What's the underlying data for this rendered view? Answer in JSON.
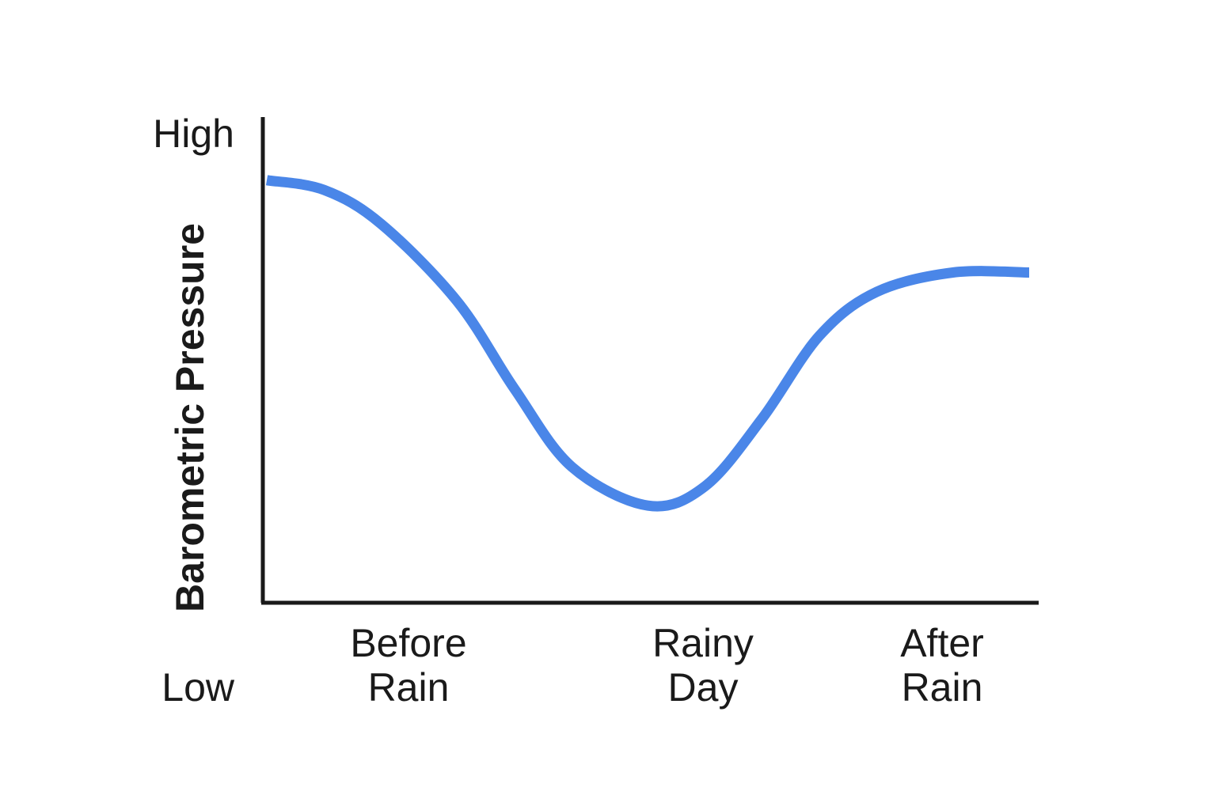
{
  "chart_data": {
    "type": "line",
    "title": "",
    "ylabel": "Barometric Pressure",
    "xlabel": "",
    "y_tick_labels": {
      "high": "High",
      "low": "Low"
    },
    "categories": [
      {
        "line1": "Before",
        "line2": "Rain"
      },
      {
        "line1": "Rainy",
        "line2": "Day"
      },
      {
        "line1": "After",
        "line2": "Rain"
      }
    ],
    "ylim": [
      0,
      100
    ],
    "series": [
      {
        "color": "#4a86e8",
        "x": [
          0,
          0.3,
          0.6,
          1.0,
          1.3,
          1.6,
          2.0,
          2.3,
          2.6,
          2.9,
          3.2,
          3.6,
          4.0
        ],
        "y": [
          87,
          85,
          78,
          62,
          44,
          28,
          20,
          24,
          38,
          55,
          64,
          68,
          68
        ]
      }
    ],
    "x_domain": [
      0,
      4
    ],
    "category_positions": [
      0.65,
      2.0,
      3.1
    ],
    "grid": false,
    "legend": "none"
  }
}
